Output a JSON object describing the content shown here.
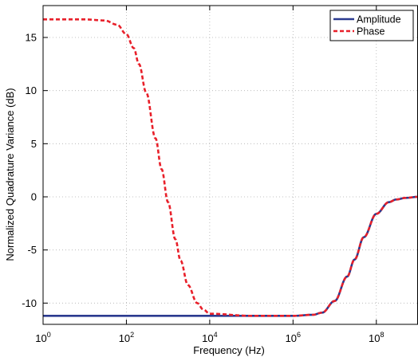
{
  "chart_data": {
    "type": "line",
    "xlabel": "Frequency (Hz)",
    "ylabel": "Normalized Quadrature Variance (dB)",
    "xscale": "log",
    "xlim": [
      1,
      1000000000
    ],
    "ylim": [
      -12,
      18
    ],
    "grid": true,
    "legend_position": "top-right",
    "x_ticks": [
      {
        "value": 1,
        "base": "10",
        "exp": "0"
      },
      {
        "value": 100,
        "base": "10",
        "exp": "2"
      },
      {
        "value": 10000,
        "base": "10",
        "exp": "4"
      },
      {
        "value": 1000000,
        "base": "10",
        "exp": "6"
      },
      {
        "value": 100000000,
        "base": "10",
        "exp": "8"
      }
    ],
    "y_ticks": [
      {
        "value": 15,
        "label": "15"
      },
      {
        "value": 10,
        "label": "10"
      },
      {
        "value": 5,
        "label": "5"
      },
      {
        "value": 0,
        "label": "0"
      },
      {
        "value": -5,
        "label": "-5"
      },
      {
        "value": -10,
        "label": "-10"
      }
    ],
    "series": [
      {
        "name": "Amplitude",
        "color": "#2b3a8f",
        "dash": "solid",
        "x": [
          1,
          10,
          100,
          1000,
          10000,
          100000,
          1000000,
          3000000,
          5000000,
          10000000,
          20000000,
          30000000,
          50000000,
          100000000,
          200000000,
          300000000,
          500000000,
          1000000000
        ],
        "y": [
          -11.2,
          -11.2,
          -11.2,
          -11.2,
          -11.2,
          -11.2,
          -11.2,
          -11.1,
          -10.9,
          -9.8,
          -7.5,
          -5.9,
          -3.8,
          -1.6,
          -0.5,
          -0.25,
          -0.1,
          0
        ]
      },
      {
        "name": "Phase",
        "color": "#e8202a",
        "dash": "dashed",
        "x": [
          1,
          10,
          30,
          60,
          100,
          150,
          200,
          300,
          500,
          700,
          1000,
          1500,
          2000,
          3000,
          5000,
          7000,
          10000,
          100000,
          1000000,
          3000000,
          5000000,
          10000000,
          20000000,
          30000000,
          50000000,
          100000000,
          200000000,
          300000000,
          500000000,
          1000000000
        ],
        "y": [
          16.7,
          16.7,
          16.6,
          16.2,
          15.3,
          14.0,
          12.5,
          9.8,
          5.5,
          2.6,
          -0.5,
          -4.0,
          -6.0,
          -8.3,
          -10.0,
          -10.6,
          -11.0,
          -11.2,
          -11.2,
          -11.1,
          -10.9,
          -9.8,
          -7.5,
          -5.9,
          -3.8,
          -1.6,
          -0.5,
          -0.25,
          -0.1,
          0
        ]
      }
    ]
  }
}
